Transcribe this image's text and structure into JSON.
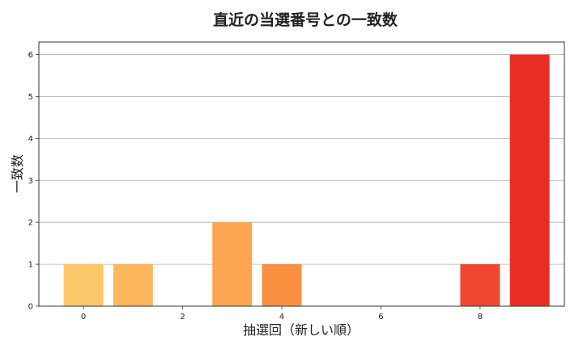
{
  "chart_data": {
    "type": "bar",
    "title": "直近の当選番号との一致数",
    "xlabel": "抽選回（新しい順）",
    "ylabel": "一致数",
    "x": [
      0,
      1,
      2,
      3,
      4,
      5,
      6,
      7,
      8,
      9
    ],
    "values": [
      1,
      1,
      0,
      2,
      1,
      0,
      0,
      0,
      1,
      6
    ],
    "colors": [
      "#fdc86a",
      "#fdb75a",
      "#fda64f",
      "#fda54e",
      "#fb9040",
      "#f97b37",
      "#f4622d",
      "#f05030",
      "#ef472f",
      "#e82e24"
    ],
    "xticks": [
      0,
      2,
      4,
      6,
      8
    ],
    "yticks": [
      0,
      1,
      2,
      3,
      4,
      5,
      6
    ],
    "xlim": [
      -0.9,
      9.7
    ],
    "ylim": [
      0,
      6.3
    ],
    "grid": "horizontal"
  }
}
